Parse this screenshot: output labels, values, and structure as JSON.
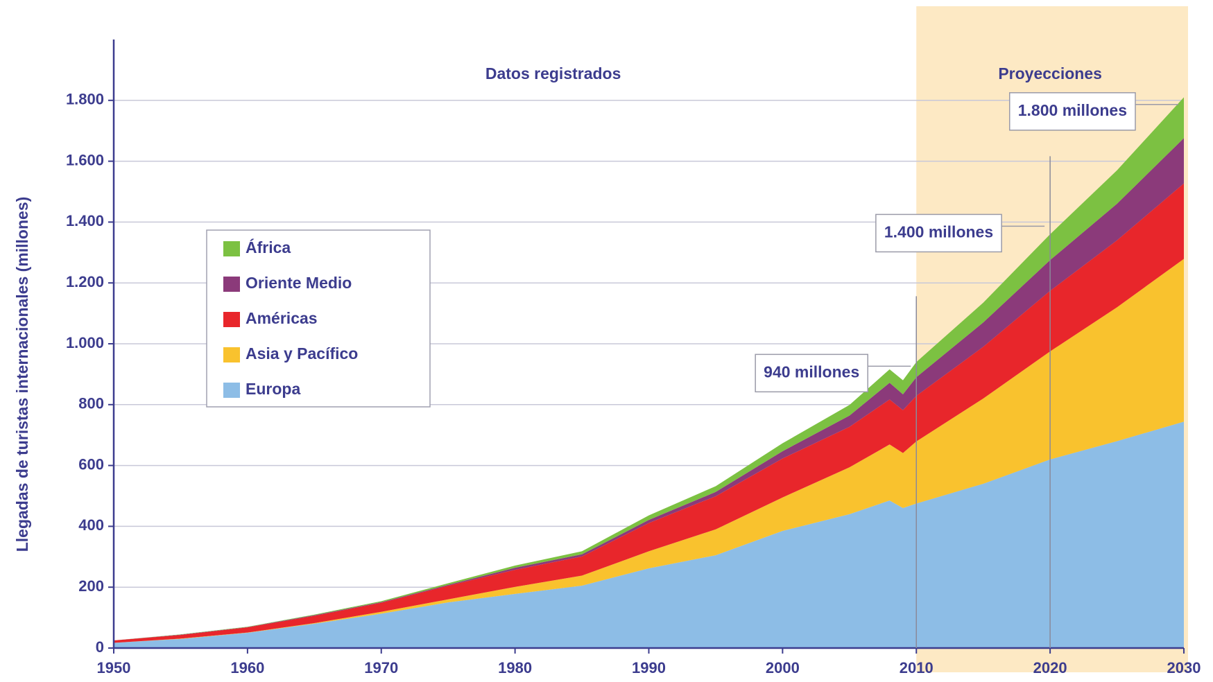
{
  "chart_data": {
    "type": "stacked_area",
    "y_label": "Llegadas de turistas internacionales (millones)",
    "x": [
      1950,
      1955,
      1960,
      1965,
      1970,
      1975,
      1980,
      1985,
      1990,
      1995,
      2000,
      2005,
      2008,
      2009,
      2010,
      2015,
      2020,
      2025,
      2030
    ],
    "series": [
      {
        "name": "Europa",
        "color": "#8dbde6",
        "values": [
          17,
          30,
          50,
          80,
          113,
          150,
          178,
          205,
          262,
          305,
          385,
          440,
          485,
          460,
          475,
          540,
          620,
          680,
          744
        ]
      },
      {
        "name": "Asia y Pacífico",
        "color": "#f9c22e",
        "values": [
          0,
          1,
          1,
          2,
          6,
          10,
          23,
          33,
          56,
          85,
          110,
          154,
          184,
          181,
          204,
          280,
          355,
          440,
          535
        ]
      },
      {
        "name": "Américas",
        "color": "#e8262b",
        "values": [
          8,
          12,
          17,
          24,
          30,
          45,
          56,
          63,
          93,
          109,
          128,
          133,
          148,
          141,
          150,
          170,
          199,
          220,
          248
        ]
      },
      {
        "name": "Oriente Medio",
        "color": "#8b3a7a",
        "values": [
          0,
          1,
          1,
          2,
          2,
          3,
          7,
          7,
          10,
          14,
          24,
          37,
          55,
          52,
          61,
          80,
          101,
          120,
          149
        ]
      },
      {
        "name": "África",
        "color": "#7cc142",
        "values": [
          0,
          1,
          1,
          2,
          3,
          5,
          7,
          10,
          15,
          19,
          26,
          35,
          44,
          46,
          50,
          65,
          85,
          110,
          134
        ]
      }
    ],
    "xlim": [
      1950,
      2030
    ],
    "xticks": [
      1950,
      1960,
      1970,
      1980,
      1990,
      2000,
      2010,
      2020,
      2030
    ],
    "ylim": [
      0,
      2000
    ],
    "yticks": [
      0,
      200,
      400,
      600,
      800,
      {
        "value": 1000,
        "label": "1.000"
      },
      {
        "value": 1200,
        "label": "1.200"
      },
      {
        "value": 1400,
        "label": "1.400"
      },
      {
        "value": 1600,
        "label": "1.600"
      },
      {
        "value": 1800,
        "label": "1.800"
      }
    ],
    "grid": true,
    "legend": "upper left",
    "regions": [
      {
        "label": "Datos registrados",
        "x": [
          1950,
          2010
        ],
        "shaded": false
      },
      {
        "label": "Proyecciones",
        "x": [
          2010,
          2030
        ],
        "shaded": true,
        "color": "#fde9c4"
      }
    ],
    "annotations": [
      {
        "text": "940 millones",
        "x": 2010,
        "y": 940
      },
      {
        "text": "1.400 millones",
        "x": 2020,
        "y": 1400
      },
      {
        "text": "1.800 millones",
        "x": 2030,
        "y": 1800
      }
    ]
  }
}
